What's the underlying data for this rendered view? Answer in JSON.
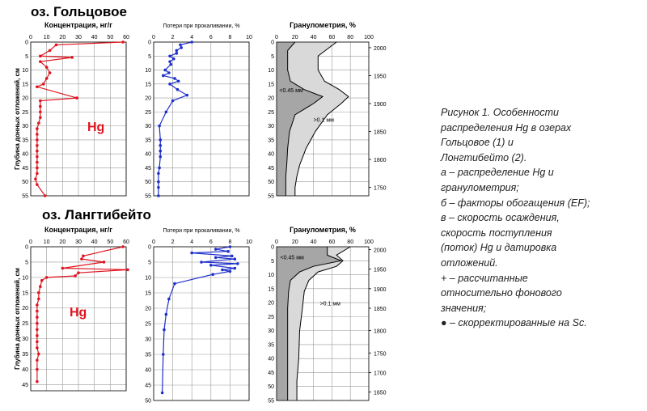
{
  "caption": {
    "lines": [
      "Рисунок 1. Особенности",
      "распределения Hg в озерах",
      "Гольцовое (1) и",
      "Лонгтибейто (2).",
      "а – распределение Hg и",
      "гранулометрия;",
      "б – факторы обогащения (EF);",
      "в – скорость осаждения,",
      "скорость поступления",
      "(поток) Hg и датировка",
      "отложений.",
      "+ – рассчитанные",
      "относительно фонового",
      "значения;",
      "● – скорректированные на Sc."
    ]
  },
  "colors": {
    "hg": "#e0141e",
    "loi": "#1f2fcc",
    "grain_fill": "#d9d9d9",
    "grain_fill_dark": "#a6a6a6"
  },
  "chart_data": [
    {
      "lake": "оз. Гольцовое",
      "element_label": "Hg",
      "ylabel": "Глубина донных отложений, см",
      "panels": [
        {
          "type": "line",
          "title": "Концентрация, нг/г",
          "xlim": [
            0,
            60
          ],
          "xticks": [
            0,
            10,
            20,
            30,
            40,
            50,
            60
          ],
          "ylim": [
            0,
            55
          ],
          "yticks": [
            0,
            5,
            10,
            15,
            20,
            25,
            30,
            35,
            40,
            45,
            50,
            55
          ],
          "series": [
            {
              "color": "#e0141e",
              "x": [
                58,
                16,
                12,
                6,
                26,
                6,
                10,
                12,
                10,
                8,
                4,
                29,
                6,
                6,
                6,
                6,
                5,
                4,
                4,
                4,
                4,
                4,
                4,
                4,
                4,
                4,
                3,
                4,
                9
              ],
              "y": [
                0,
                1,
                3,
                5,
                5.5,
                7,
                9,
                11,
                13,
                15,
                16,
                20,
                21,
                23,
                25,
                27,
                29,
                31,
                33,
                35,
                37,
                39,
                41,
                43,
                45,
                47,
                49,
                51,
                55
              ]
            }
          ]
        },
        {
          "type": "line",
          "title": "Потери при прокаливании, %",
          "xlim": [
            0,
            10
          ],
          "xticks": [
            0,
            2,
            4,
            6,
            8,
            10
          ],
          "ylim": [
            0,
            55
          ],
          "yticks": [
            0,
            5,
            10,
            15,
            20,
            25,
            30,
            35,
            40,
            45,
            50,
            55
          ],
          "series": [
            {
              "color": "#1f2fcc",
              "x": [
                4,
                2.8,
                2.9,
                2.4,
                2.4,
                1.7,
                2.1,
                1.7,
                1.8,
                1.2,
                1.6,
                1,
                2.2,
                2.6,
                1.7,
                2.5,
                3.5,
                2,
                1.3,
                0.6,
                0.7,
                0.7,
                0.7,
                0.7,
                0.6,
                0.5,
                0.5,
                0.5,
                0.5
              ],
              "y": [
                0,
                1,
                2,
                3,
                4,
                5,
                6,
                7,
                8,
                10,
                11,
                12,
                13,
                14,
                15,
                17,
                19,
                21,
                25,
                30,
                35,
                37,
                39,
                41,
                45,
                47,
                50,
                52,
                55
              ]
            }
          ]
        },
        {
          "type": "area",
          "title": "Гранулометрия, %",
          "xlim": [
            0,
            100
          ],
          "xticks": [
            0,
            20,
            40,
            60,
            80,
            100
          ],
          "ylim": [
            0,
            55
          ],
          "yticks": [
            0,
            5,
            10,
            15,
            20,
            25,
            30,
            35,
            40,
            45,
            50,
            55
          ],
          "dates": {
            "values": [
              2000,
              1950,
              1900,
              1850,
              1800,
              1750
            ],
            "depths": [
              2,
              12,
              22,
              32,
              42,
              52
            ]
          },
          "series": [
            {
              "name": "<0.45 мм",
              "x": [
                20,
                12,
                12,
                15,
                30,
                50,
                40,
                20,
                14,
                12,
                11,
                10,
                10,
                10
              ],
              "y": [
                0,
                3,
                10,
                14,
                17,
                19.5,
                22,
                26,
                32,
                38,
                44,
                48,
                52,
                55
              ]
            },
            {
              "name": ">0.1 мм",
              "x": [
                65,
                45,
                45,
                52,
                68,
                78,
                70,
                55,
                42,
                32,
                25,
                22,
                20,
                20
              ],
              "y": [
                0,
                5,
                10,
                14,
                17,
                19.5,
                22,
                26,
                32,
                38,
                44,
                48,
                52,
                55
              ]
            }
          ],
          "annotations": [
            {
              "text": "<0.45 мм",
              "x": 3,
              "y": 18
            },
            {
              "text": ">0.1 мм",
              "x": 40,
              "y": 28.5
            }
          ]
        }
      ]
    },
    {
      "lake": "оз. Лангтибейто",
      "element_label": "Hg",
      "ylabel": "Глубина донных отложений, см",
      "panels": [
        {
          "type": "line",
          "title": "Концентрация, нг/г",
          "xlim": [
            0,
            60
          ],
          "xticks": [
            0,
            10,
            20,
            30,
            40,
            50,
            60
          ],
          "ylim": [
            0,
            47
          ],
          "yticks": [
            0,
            5,
            10,
            15,
            20,
            25,
            30,
            35,
            40,
            45
          ],
          "series": [
            {
              "color": "#e0141e",
              "x": [
                58,
                33,
                32,
                46,
                20,
                61,
                30,
                28,
                10,
                7,
                6,
                5,
                5,
                4,
                4,
                4,
                4,
                4,
                4,
                4,
                4,
                5,
                4,
                4,
                4
              ],
              "y": [
                0,
                3,
                4,
                5,
                7,
                7.5,
                8.5,
                9.5,
                10,
                11,
                13,
                15,
                17,
                19,
                21,
                23,
                25,
                27,
                29,
                31,
                33,
                35,
                37,
                40,
                44
              ]
            }
          ]
        },
        {
          "type": "line",
          "title": "Потери при прокаливании, %",
          "xlim": [
            0,
            10
          ],
          "xticks": [
            0,
            2,
            4,
            6,
            8,
            10
          ],
          "ylim": [
            0,
            50
          ],
          "yticks": [
            0,
            5,
            10,
            15,
            20,
            25,
            30,
            35,
            40,
            45,
            50
          ],
          "series": [
            {
              "color": "#1f2fcc",
              "x": [
                8,
                6.5,
                7.8,
                4,
                8.2,
                6.5,
                8.5,
                5,
                8.8,
                6,
                8.5,
                7.2,
                8,
                6.2,
                2.2,
                1.6,
                1.3,
                1.1,
                1,
                0.9
              ],
              "y": [
                0,
                0.8,
                1.5,
                2,
                3,
                3.5,
                4,
                5,
                5.5,
                6,
                7,
                7.5,
                8,
                9,
                12,
                17,
                22,
                27,
                35,
                47.5
              ]
            }
          ]
        },
        {
          "type": "area",
          "title": "Гранулометрия, %",
          "xlim": [
            0,
            100
          ],
          "xticks": [
            0,
            20,
            40,
            60,
            80,
            100
          ],
          "ylim": [
            0,
            55
          ],
          "yticks": [
            0,
            5,
            10,
            15,
            20,
            25,
            30,
            35,
            40,
            45,
            50,
            55
          ],
          "dates": {
            "values": [
              2000,
              1950,
              1900,
              1850,
              1800,
              1750,
              1700,
              1650
            ],
            "depths": [
              1,
              8,
              15,
              22,
              30,
              38,
              45,
              52
            ]
          },
          "series": [
            {
              "name": "<0.45 мм",
              "x": [
                55,
                55,
                70,
                40,
                25,
                15,
                13,
                12,
                12,
                12,
                12,
                12
              ],
              "y": [
                0,
                3,
                5,
                7,
                9,
                12,
                16,
                22,
                30,
                40,
                48,
                55
              ]
            },
            {
              "name": ">0.1 мм",
              "x": [
                80,
                65,
                72,
                65,
                45,
                35,
                30,
                28,
                25,
                24,
                22,
                22
              ],
              "y": [
                0,
                3,
                5,
                7,
                9,
                12,
                16,
                22,
                30,
                40,
                48,
                55
              ]
            }
          ],
          "annotations": [
            {
              "text": "<0.45 мм",
              "x": 4,
              "y": 4.5
            },
            {
              "text": ">0.1 мм",
              "x": 47,
              "y": 21
            }
          ]
        }
      ]
    }
  ]
}
